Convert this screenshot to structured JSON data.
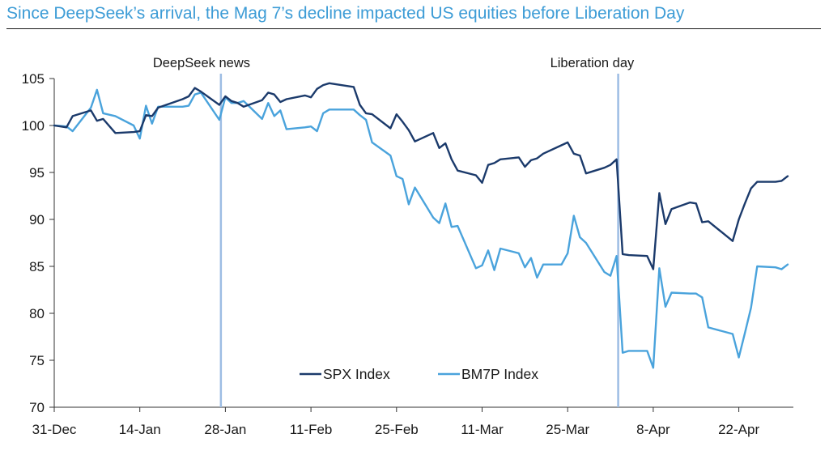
{
  "title": "Since DeepSeek’s arrival, the Mag 7’s decline impacted US equities before Liberation Day",
  "chart_data": {
    "type": "line",
    "title": "Since DeepSeek’s arrival, the Mag 7’s decline impacted US equities before Liberation Day",
    "xlabel": "",
    "ylabel": "",
    "x": [
      "2024-12-31",
      "2025-01-02",
      "2025-01-03",
      "2025-01-06",
      "2025-01-07",
      "2025-01-08",
      "2025-01-10",
      "2025-01-13",
      "2025-01-14",
      "2025-01-15",
      "2025-01-16",
      "2025-01-17",
      "2025-01-21",
      "2025-01-22",
      "2025-01-23",
      "2025-01-24",
      "2025-01-27",
      "2025-01-28",
      "2025-01-29",
      "2025-01-30",
      "2025-01-31",
      "2025-02-03",
      "2025-02-04",
      "2025-02-05",
      "2025-02-06",
      "2025-02-07",
      "2025-02-10",
      "2025-02-11",
      "2025-02-12",
      "2025-02-13",
      "2025-02-14",
      "2025-02-18",
      "2025-02-19",
      "2025-02-20",
      "2025-02-21",
      "2025-02-24",
      "2025-02-25",
      "2025-02-26",
      "2025-02-27",
      "2025-02-28",
      "2025-03-03",
      "2025-03-04",
      "2025-03-05",
      "2025-03-06",
      "2025-03-07",
      "2025-03-10",
      "2025-03-11",
      "2025-03-12",
      "2025-03-13",
      "2025-03-14",
      "2025-03-17",
      "2025-03-18",
      "2025-03-19",
      "2025-03-20",
      "2025-03-21",
      "2025-03-24",
      "2025-03-25",
      "2025-03-26",
      "2025-03-27",
      "2025-03-28",
      "2025-03-31",
      "2025-04-01",
      "2025-04-02",
      "2025-04-03",
      "2025-04-04",
      "2025-04-07",
      "2025-04-08",
      "2025-04-09",
      "2025-04-10",
      "2025-04-11",
      "2025-04-14",
      "2025-04-15",
      "2025-04-16",
      "2025-04-17",
      "2025-04-21",
      "2025-04-22",
      "2025-04-23",
      "2025-04-24",
      "2025-04-25",
      "2025-04-28",
      "2025-04-29",
      "2025-04-30"
    ],
    "series": [
      {
        "name": "SPX Index",
        "color": "#1b3a6b",
        "values": [
          100.0,
          99.8,
          101.0,
          101.6,
          100.5,
          100.7,
          99.2,
          99.3,
          99.4,
          101.1,
          101.0,
          101.9,
          102.8,
          103.1,
          104.0,
          103.6,
          102.2,
          103.1,
          102.6,
          102.4,
          102.0,
          102.7,
          103.5,
          103.3,
          102.5,
          102.8,
          103.2,
          103.0,
          103.9,
          104.3,
          104.5,
          104.1,
          102.2,
          101.3,
          101.2,
          99.7,
          101.2,
          100.4,
          99.5,
          98.3,
          99.2,
          97.6,
          98.1,
          96.4,
          95.2,
          94.7,
          93.9,
          95.8,
          96.0,
          96.4,
          96.6,
          95.6,
          96.3,
          96.5,
          97.0,
          97.9,
          98.2,
          97.0,
          96.8,
          94.9,
          95.5,
          95.8,
          96.4,
          86.3,
          86.2,
          86.1,
          84.7,
          92.8,
          89.5,
          91.1,
          91.8,
          91.7,
          89.7,
          89.8,
          87.7,
          90.0,
          91.7,
          93.3,
          94.0,
          94.0,
          94.1,
          94.6
        ]
      },
      {
        "name": "BM7P Index",
        "color": "#4aa3dc",
        "values": [
          100.0,
          99.9,
          99.4,
          101.9,
          103.8,
          101.3,
          101.0,
          100.0,
          98.6,
          102.1,
          100.2,
          102.0,
          102.0,
          102.1,
          103.3,
          103.5,
          100.6,
          103.0,
          102.4,
          102.4,
          102.6,
          100.7,
          102.4,
          101.0,
          101.6,
          99.6,
          99.8,
          99.9,
          99.4,
          101.3,
          101.7,
          101.7,
          101.1,
          100.6,
          98.2,
          96.8,
          94.6,
          94.3,
          91.6,
          93.4,
          90.2,
          89.6,
          91.7,
          89.2,
          89.3,
          84.8,
          85.1,
          86.7,
          84.6,
          86.9,
          86.4,
          84.9,
          85.9,
          83.8,
          85.2,
          85.2,
          86.4,
          90.4,
          88.1,
          87.5,
          84.4,
          84.0,
          86.1,
          75.8,
          76.0,
          76.0,
          74.2,
          84.8,
          80.7,
          82.2,
          82.1,
          82.1,
          81.7,
          78.5,
          77.8,
          75.3,
          77.9,
          80.6,
          85.0,
          84.9,
          84.7,
          85.2
        ]
      }
    ],
    "x_ticks": [
      "31-Dec",
      "14-Jan",
      "28-Jan",
      "11-Feb",
      "25-Feb",
      "11-Mar",
      "25-Mar",
      "8-Apr",
      "22-Apr"
    ],
    "y_ticks": [
      "70",
      "75",
      "80",
      "85",
      "90",
      "95",
      "100",
      "105"
    ],
    "ylim": [
      70,
      105
    ],
    "grid": false,
    "legend_position": "bottom-center",
    "annotations": [
      {
        "label": "DeepSeek news",
        "date": "2025-01-27"
      },
      {
        "label": "Liberation day",
        "date": "2025-04-02"
      }
    ]
  }
}
